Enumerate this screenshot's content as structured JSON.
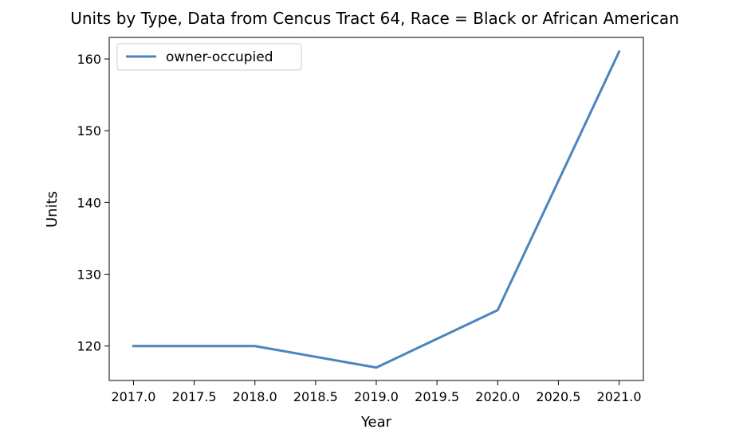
{
  "chart_data": {
    "type": "line",
    "title": "Units by Type, Data from Cencus Tract 64, Race = Black or African American",
    "xlabel": "Year",
    "ylabel": "Units",
    "x": [
      2017,
      2018,
      2019,
      2020,
      2021
    ],
    "series": [
      {
        "name": "owner-occupied",
        "values": [
          120,
          120,
          117,
          125,
          161
        ],
        "color": "#4c84bf"
      }
    ],
    "xlim": [
      2016.8,
      2021.2
    ],
    "ylim": [
      115.2,
      163.0
    ],
    "xticks": [
      2017.0,
      2017.5,
      2018.0,
      2018.5,
      2019.0,
      2019.5,
      2020.0,
      2020.5,
      2021.0
    ],
    "xtick_labels": [
      "2017.0",
      "2017.5",
      "2018.0",
      "2018.5",
      "2019.0",
      "2019.5",
      "2020.0",
      "2020.5",
      "2021.0"
    ],
    "yticks": [
      120,
      130,
      140,
      150,
      160
    ],
    "ytick_labels": [
      "120",
      "130",
      "140",
      "150",
      "160"
    ],
    "grid": false,
    "legend_position": "upper-left"
  }
}
